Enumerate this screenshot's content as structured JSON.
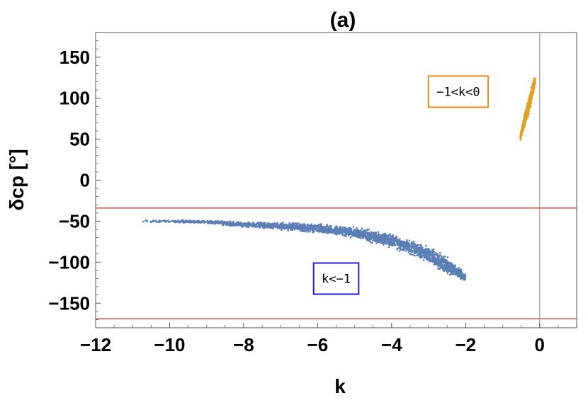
{
  "chart_data": {
    "type": "scatter",
    "title": "(a)",
    "xlabel": "k",
    "ylabel": "δcp [°]",
    "xlim": [
      -12,
      1
    ],
    "ylim": [
      -180,
      180
    ],
    "xticks": [
      -12,
      -10,
      -8,
      -6,
      -4,
      -2,
      0
    ],
    "xtick_labels": [
      "−12",
      "−10",
      "−8",
      "−6",
      "−4",
      "−2",
      "0"
    ],
    "yticks": [
      -150,
      -100,
      -50,
      0,
      50,
      100,
      150
    ],
    "ytick_labels": [
      "−150",
      "−100",
      "−50",
      "0",
      "50",
      "100",
      "150"
    ],
    "grid": false,
    "reference_lines": {
      "horizontal_red": [
        -34,
        -169
      ],
      "vertical_gray": [
        0
      ],
      "red_color": "#d62728",
      "vertical_color": "#888888"
    },
    "series": [
      {
        "region": "k<-1",
        "color": "#5b7fb5",
        "band": [
          [
            -10.8,
            -50
          ],
          [
            -10,
            -50
          ],
          [
            -9,
            -51
          ],
          [
            -8,
            -54
          ],
          [
            -7,
            -56
          ],
          [
            -6,
            -59
          ],
          [
            -5,
            -64
          ],
          [
            -4,
            -74
          ],
          [
            -3,
            -90
          ],
          [
            -2.5,
            -104
          ],
          [
            -2,
            -119
          ]
        ],
        "band_width": [
          2,
          2,
          3,
          4,
          6,
          7,
          8,
          10,
          12,
          13,
          6
        ]
      },
      {
        "region": "-1<k<0",
        "color": "#e0a020",
        "band": [
          [
            -0.52,
            52
          ],
          [
            -0.45,
            65
          ],
          [
            -0.38,
            78
          ],
          [
            -0.3,
            90
          ],
          [
            -0.23,
            103
          ],
          [
            -0.16,
            115
          ],
          [
            -0.12,
            122
          ]
        ],
        "band_width": [
          4,
          10,
          12,
          12,
          12,
          10,
          4
        ]
      }
    ],
    "annotations": [
      {
        "text": "−1<k<0",
        "x": -2.2,
        "y": 108,
        "box_color": "#ee8a1a"
      },
      {
        "text": "k<−1",
        "x": -5.5,
        "y": -120,
        "box_color": "#1f1fd6"
      }
    ]
  }
}
